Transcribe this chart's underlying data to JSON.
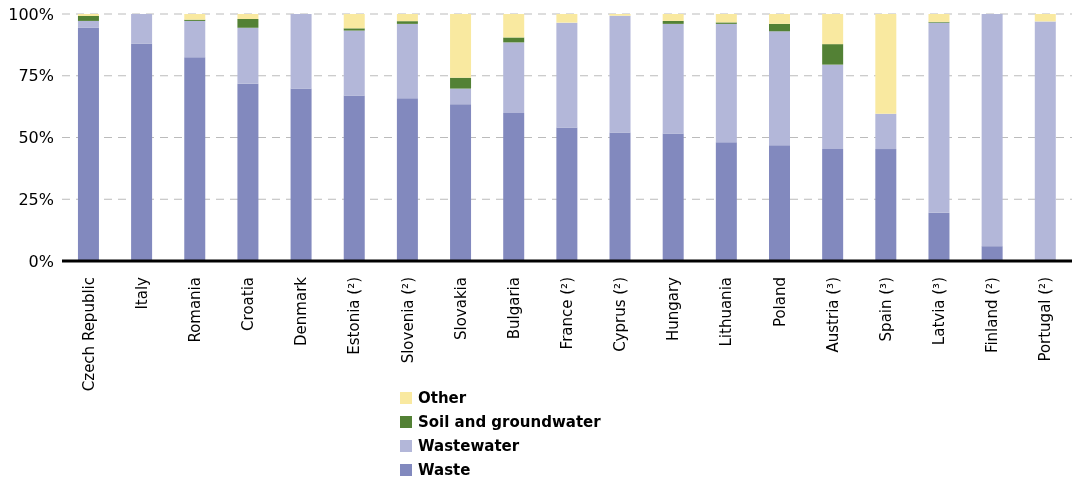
{
  "chart_data": {
    "type": "bar",
    "stacked": true,
    "categories": [
      "Czech Republic",
      "Italy",
      "Romania",
      "Croatia",
      "Denmark",
      "Estonia (²)",
      "Slovenia (²)",
      "Slovakia",
      "Bulgaria",
      "France (²)",
      "Cyprus (²)",
      "Hungary",
      "Lithuania",
      "Poland",
      "Austria (³)",
      "Spain (³)",
      "Latvia (³)",
      "Finland (²)",
      "Portugal (²)"
    ],
    "series": [
      {
        "name": "Waste",
        "color": "#8289be",
        "values": [
          94.4,
          88.1,
          82.5,
          71.8,
          69.8,
          67,
          65.9,
          63.5,
          59.9,
          54,
          52,
          51.6,
          48.1,
          46.9,
          45.3,
          45.3,
          19.5,
          6,
          0
        ]
      },
      {
        "name": "Wastewater",
        "color": "#b3b7d9",
        "values": [
          2.8,
          11.9,
          14.7,
          22.6,
          30.2,
          26.3,
          30.1,
          6.3,
          28.6,
          42.5,
          47.3,
          44.4,
          47.9,
          46.1,
          34.2,
          14.3,
          77,
          94,
          97
        ]
      },
      {
        "name": "Soil and groundwater",
        "color": "#538135",
        "values": [
          2,
          0,
          0.5,
          3.6,
          0,
          0.9,
          1.1,
          4.4,
          2,
          0,
          0,
          1.2,
          0.6,
          3,
          8.3,
          0,
          0.3,
          0,
          0
        ]
      },
      {
        "name": "Other",
        "color": "#f9e9a0",
        "values": [
          0.8,
          0,
          2.3,
          2,
          0,
          5.8,
          2.9,
          25.8,
          9.5,
          3.5,
          0.7,
          2.8,
          3.4,
          4,
          12.2,
          40.4,
          3.2,
          0,
          3
        ]
      }
    ],
    "ylim": [
      0,
      100
    ],
    "yticks": [
      {
        "value": 0,
        "label": "0%"
      },
      {
        "value": 25,
        "label": "25%"
      },
      {
        "value": 50,
        "label": "50%"
      },
      {
        "value": 75,
        "label": "75%"
      },
      {
        "value": 100,
        "label": "100%"
      }
    ],
    "grid": "y",
    "legend": "bottom"
  }
}
